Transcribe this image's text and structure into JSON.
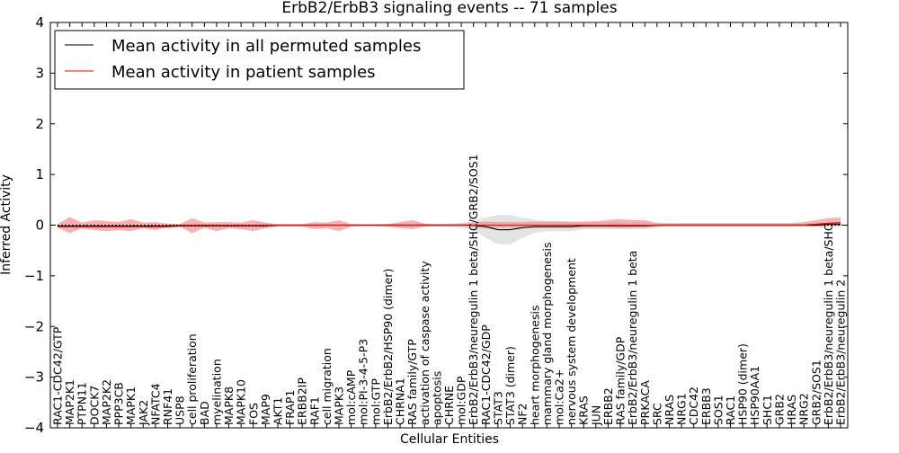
{
  "chart_data": {
    "type": "line",
    "title": "ErbB2/ErbB3 signaling events -- 71 samples",
    "xlabel": "Cellular Entities",
    "ylabel": "Inferred Activity",
    "ylim": [
      -4,
      4
    ],
    "yticks": [
      -4,
      -3,
      -2,
      -1,
      0,
      1,
      2,
      3,
      4
    ],
    "legend_position": "top-left",
    "colors": {
      "permuted": "#000000",
      "patient": "#ff0000",
      "patient_band": "#f08080",
      "permuted_band": "#c0c0c0",
      "reference": "#000000"
    },
    "categories": [
      "RAC1-CDC42/GTP",
      "MAP2K1",
      "PTPN11",
      "DOCK7",
      "MAP2K2",
      "PPP3CB",
      "MAPK1",
      "JAK2",
      "NFATC4",
      "RNF41",
      "USP8",
      "cell proliferation",
      "BAD",
      "myelination",
      "MAPK8",
      "MAPK10",
      "FOS",
      "MAP9",
      "AKT1",
      "FRAP1",
      "ERBB2IP",
      "RAF1",
      "cell migration",
      "MAPK3",
      "mol:cAMP",
      "mol:PI-3-4-5-P3",
      "mol:GTP",
      "ErbB2/ErbB2/HSP90 (dimer)",
      "CHRNA1",
      "RAS family/GTP",
      "activation of caspase activity",
      "apoptosis",
      "CHRNE",
      "mol:GDP",
      "ErbB2/ErbB3/neuregulin 1 beta/SHC/GRB2/SOS1",
      "RAC1-CDC42/GDP",
      "STAT3",
      "STAT3 (dimer)",
      "NF2",
      "heart morphogenesis",
      "mammary gland morphogenesis",
      "mol:Ca2+",
      "nervous system development",
      "KRAS",
      "JUN",
      "ERBB2",
      "RAS family/GDP",
      "ErbB2/ErbB3/neuregulin 1 beta",
      "PRKACA",
      "SRC",
      "NRAS",
      "NRG1",
      "CDC42",
      "ERBB3",
      "SOS1",
      "RAC1",
      "HSP90 (dimer)",
      "HSP90AA1",
      "SHC1",
      "GRB2",
      "HRAS",
      "NRG2",
      "GRB2/SOS1",
      "ErbB2/ErbB3/neuregulin 1 beta/SHC",
      "ErbB2/ErbB3/neuregulin 2"
    ],
    "series": [
      {
        "name": "Mean activity in all permuted samples",
        "values": [
          -0.02,
          -0.02,
          -0.02,
          -0.02,
          -0.02,
          -0.02,
          -0.02,
          -0.02,
          -0.02,
          -0.02,
          -0.01,
          -0.01,
          -0.01,
          -0.01,
          -0.01,
          -0.01,
          -0.01,
          -0.01,
          0.0,
          0.0,
          0.0,
          0.0,
          0.0,
          0.0,
          0.0,
          0.0,
          0.0,
          0.0,
          0.0,
          0.0,
          0.0,
          0.0,
          0.0,
          0.0,
          0.0,
          -0.03,
          -0.09,
          -0.09,
          -0.05,
          -0.03,
          -0.03,
          -0.03,
          -0.03,
          -0.01,
          -0.01,
          -0.01,
          -0.01,
          -0.01,
          -0.01,
          0.0,
          0.0,
          0.0,
          0.0,
          0.0,
          0.0,
          0.0,
          0.0,
          0.0,
          0.0,
          0.0,
          0.0,
          0.0,
          0.0,
          0.02,
          0.02
        ],
        "band_low": [
          -0.05,
          -0.05,
          -0.05,
          -0.05,
          -0.05,
          -0.05,
          -0.05,
          -0.05,
          -0.05,
          -0.05,
          -0.04,
          -0.04,
          -0.04,
          -0.04,
          -0.04,
          -0.04,
          -0.04,
          -0.04,
          -0.02,
          -0.02,
          -0.02,
          -0.02,
          -0.02,
          -0.02,
          -0.02,
          -0.02,
          -0.02,
          -0.03,
          -0.03,
          -0.03,
          -0.03,
          -0.03,
          -0.03,
          -0.05,
          -0.1,
          -0.25,
          -0.38,
          -0.38,
          -0.25,
          -0.15,
          -0.12,
          -0.12,
          -0.12,
          -0.08,
          -0.08,
          -0.08,
          -0.08,
          -0.08,
          -0.08,
          -0.05,
          -0.03,
          -0.03,
          -0.03,
          -0.03,
          -0.03,
          -0.03,
          -0.03,
          -0.03,
          -0.03,
          -0.03,
          -0.03,
          -0.03,
          -0.03,
          -0.02,
          -0.02
        ],
        "band_high": [
          0.02,
          0.02,
          0.02,
          0.02,
          0.02,
          0.02,
          0.02,
          0.02,
          0.02,
          0.02,
          0.02,
          0.02,
          0.02,
          0.02,
          0.02,
          0.02,
          0.02,
          0.02,
          0.02,
          0.02,
          0.02,
          0.02,
          0.02,
          0.02,
          0.02,
          0.02,
          0.02,
          0.03,
          0.03,
          0.03,
          0.03,
          0.03,
          0.03,
          0.05,
          0.08,
          0.15,
          0.2,
          0.2,
          0.15,
          0.1,
          0.08,
          0.08,
          0.08,
          0.06,
          0.06,
          0.06,
          0.06,
          0.06,
          0.06,
          0.04,
          0.03,
          0.03,
          0.03,
          0.03,
          0.03,
          0.03,
          0.03,
          0.03,
          0.03,
          0.03,
          0.03,
          0.03,
          0.03,
          0.05,
          0.05
        ]
      },
      {
        "name": "Mean activity in patient samples",
        "values": [
          -0.03,
          -0.03,
          -0.03,
          -0.03,
          -0.03,
          -0.03,
          -0.03,
          -0.03,
          -0.03,
          -0.03,
          -0.02,
          -0.02,
          -0.02,
          -0.02,
          -0.02,
          -0.02,
          -0.02,
          -0.02,
          0.0,
          0.0,
          0.0,
          0.0,
          0.0,
          0.0,
          0.0,
          0.0,
          0.0,
          0.0,
          0.0,
          0.0,
          0.0,
          0.0,
          0.0,
          0.0,
          0.0,
          0.0,
          0.0,
          0.0,
          0.0,
          0.0,
          0.0,
          0.0,
          0.0,
          0.0,
          0.0,
          0.0,
          0.0,
          0.0,
          0.0,
          0.0,
          0.0,
          0.0,
          0.0,
          0.0,
          0.0,
          0.0,
          0.0,
          0.0,
          0.0,
          0.0,
          0.0,
          0.0,
          0.02,
          0.04,
          0.05
        ],
        "band_low": [
          -0.05,
          -0.16,
          -0.06,
          -0.1,
          -0.12,
          -0.1,
          -0.12,
          -0.06,
          -0.1,
          -0.04,
          -0.03,
          -0.16,
          -0.05,
          -0.12,
          -0.06,
          -0.08,
          -0.12,
          -0.06,
          -0.03,
          -0.03,
          -0.03,
          -0.08,
          -0.06,
          -0.12,
          -0.03,
          -0.02,
          -0.02,
          -0.03,
          -0.06,
          -0.08,
          -0.03,
          -0.02,
          -0.02,
          -0.02,
          -0.04,
          -0.06,
          -0.05,
          -0.05,
          -0.05,
          -0.05,
          -0.05,
          -0.05,
          -0.05,
          -0.05,
          -0.05,
          -0.05,
          -0.06,
          -0.05,
          -0.05,
          -0.03,
          -0.02,
          -0.02,
          -0.02,
          -0.02,
          -0.02,
          -0.02,
          -0.02,
          -0.02,
          -0.02,
          -0.02,
          -0.02,
          -0.02,
          -0.03,
          -0.02,
          -0.02
        ],
        "band_high": [
          0.02,
          0.16,
          0.05,
          0.1,
          0.08,
          0.06,
          0.12,
          0.05,
          0.06,
          0.03,
          0.02,
          0.14,
          0.05,
          0.06,
          0.06,
          0.05,
          0.1,
          0.05,
          0.02,
          0.02,
          0.02,
          0.06,
          0.05,
          0.1,
          0.02,
          0.02,
          0.02,
          0.02,
          0.06,
          0.1,
          0.03,
          0.02,
          0.02,
          0.02,
          0.05,
          0.07,
          0.06,
          0.06,
          0.06,
          0.07,
          0.07,
          0.07,
          0.06,
          0.07,
          0.08,
          0.1,
          0.12,
          0.1,
          0.1,
          0.04,
          0.04,
          0.04,
          0.04,
          0.04,
          0.04,
          0.04,
          0.04,
          0.04,
          0.04,
          0.04,
          0.04,
          0.06,
          0.1,
          0.14,
          0.15
        ]
      }
    ]
  }
}
